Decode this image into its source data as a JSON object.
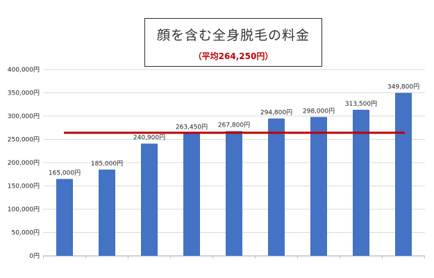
{
  "chart_data": {
    "type": "bar",
    "title": "顔を含む全身脱毛の料金",
    "subtitle": "（平均264,250円）",
    "categories": [
      "",
      "",
      "",
      "",
      "",
      "",
      "",
      "",
      ""
    ],
    "values": [
      165000,
      185000,
      240900,
      263450,
      267800,
      294800,
      298000,
      313500,
      349800
    ],
    "data_labels": [
      "165,000円",
      "185,000円",
      "240,900円",
      "263,450円",
      "267,800円",
      "294,800円",
      "298,000円",
      "313,500円",
      "349,800円"
    ],
    "average": 264250,
    "ylim": [
      0,
      400000
    ],
    "yticks": [
      0,
      50000,
      100000,
      150000,
      200000,
      250000,
      300000,
      350000,
      400000
    ],
    "ytick_labels": [
      "0円",
      "50,000円",
      "100,000円",
      "150,000円",
      "200,000円",
      "250,000円",
      "300,000円",
      "350,000円",
      "400,000円"
    ],
    "grid": true,
    "legend": "none",
    "bar_color": "#4472c4",
    "average_line_color": "#c00000"
  }
}
